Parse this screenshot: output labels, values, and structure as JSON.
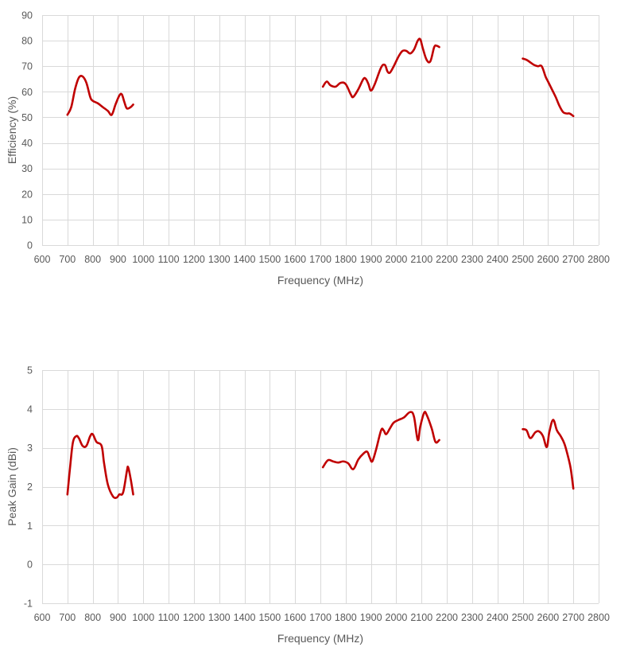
{
  "chart_data": [
    {
      "type": "line",
      "xlabel": "Frequency (MHz)",
      "ylabel": "Efficiency (%)",
      "xlim": [
        600,
        2800
      ],
      "ylim": [
        0,
        90
      ],
      "xticks": [
        600,
        700,
        800,
        900,
        1000,
        1100,
        1200,
        1300,
        1400,
        1500,
        1600,
        1700,
        1800,
        1900,
        2000,
        2100,
        2200,
        2300,
        2400,
        2500,
        2600,
        2700,
        2800
      ],
      "yticks": [
        0,
        10,
        20,
        30,
        40,
        50,
        60,
        70,
        80,
        90
      ],
      "grid": true,
      "color": "#c00000",
      "segments": [
        [
          [
            700,
            51
          ],
          [
            715,
            54
          ],
          [
            730,
            61
          ],
          [
            745,
            65.5
          ],
          [
            760,
            66
          ],
          [
            775,
            63.5
          ],
          [
            790,
            58
          ],
          [
            800,
            56.5
          ],
          [
            820,
            55.5
          ],
          [
            840,
            54
          ],
          [
            860,
            52.5
          ],
          [
            875,
            51
          ],
          [
            890,
            55
          ],
          [
            905,
            58.5
          ],
          [
            915,
            59
          ],
          [
            925,
            56
          ],
          [
            935,
            53.5
          ],
          [
            950,
            54
          ],
          [
            960,
            55
          ]
        ],
        [
          [
            1710,
            62
          ],
          [
            1725,
            64
          ],
          [
            1740,
            62.5
          ],
          [
            1760,
            62
          ],
          [
            1780,
            63.5
          ],
          [
            1800,
            63
          ],
          [
            1820,
            59
          ],
          [
            1830,
            58
          ],
          [
            1850,
            61
          ],
          [
            1870,
            65
          ],
          [
            1880,
            65
          ],
          [
            1890,
            63
          ],
          [
            1900,
            60.5
          ],
          [
            1915,
            63
          ],
          [
            1940,
            69.5
          ],
          [
            1955,
            70.5
          ],
          [
            1965,
            68
          ],
          [
            1975,
            67.5
          ],
          [
            1990,
            70
          ],
          [
            2010,
            74
          ],
          [
            2025,
            76
          ],
          [
            2040,
            76
          ],
          [
            2055,
            75
          ],
          [
            2070,
            76.5
          ],
          [
            2085,
            80
          ],
          [
            2095,
            80.5
          ],
          [
            2105,
            77
          ],
          [
            2120,
            72.5
          ],
          [
            2135,
            72
          ],
          [
            2150,
            77.5
          ],
          [
            2160,
            78
          ],
          [
            2170,
            77.5
          ]
        ],
        [
          [
            2500,
            73
          ],
          [
            2515,
            72.5
          ],
          [
            2530,
            71.5
          ],
          [
            2545,
            70.5
          ],
          [
            2560,
            70
          ],
          [
            2575,
            70
          ],
          [
            2590,
            66
          ],
          [
            2600,
            64
          ],
          [
            2615,
            61
          ],
          [
            2630,
            58
          ],
          [
            2645,
            54.5
          ],
          [
            2660,
            52
          ],
          [
            2675,
            51.5
          ],
          [
            2685,
            51.5
          ],
          [
            2700,
            50.5
          ]
        ]
      ]
    },
    {
      "type": "line",
      "xlabel": "Frequency (MHz)",
      "ylabel": "Peak Gain (dBi)",
      "xlim": [
        600,
        2800
      ],
      "ylim": [
        -1,
        5
      ],
      "xticks": [
        600,
        700,
        800,
        900,
        1000,
        1100,
        1200,
        1300,
        1400,
        1500,
        1600,
        1700,
        1800,
        1900,
        2000,
        2100,
        2200,
        2300,
        2400,
        2500,
        2600,
        2700,
        2800
      ],
      "yticks": [
        -1,
        0,
        1,
        2,
        3,
        4,
        5
      ],
      "grid": true,
      "color": "#c00000",
      "segments": [
        [
          [
            700,
            1.8
          ],
          [
            712,
            2.6
          ],
          [
            722,
            3.15
          ],
          [
            735,
            3.3
          ],
          [
            745,
            3.25
          ],
          [
            760,
            3.05
          ],
          [
            775,
            3.05
          ],
          [
            790,
            3.3
          ],
          [
            800,
            3.35
          ],
          [
            815,
            3.15
          ],
          [
            835,
            3.05
          ],
          [
            845,
            2.6
          ],
          [
            860,
            2.05
          ],
          [
            880,
            1.75
          ],
          [
            895,
            1.72
          ],
          [
            905,
            1.8
          ],
          [
            920,
            1.85
          ],
          [
            935,
            2.4
          ],
          [
            940,
            2.5
          ],
          [
            950,
            2.2
          ],
          [
            960,
            1.8
          ]
        ],
        [
          [
            1710,
            2.5
          ],
          [
            1730,
            2.68
          ],
          [
            1750,
            2.65
          ],
          [
            1770,
            2.62
          ],
          [
            1790,
            2.65
          ],
          [
            1810,
            2.6
          ],
          [
            1830,
            2.45
          ],
          [
            1850,
            2.7
          ],
          [
            1870,
            2.85
          ],
          [
            1885,
            2.9
          ],
          [
            1895,
            2.75
          ],
          [
            1905,
            2.65
          ],
          [
            1920,
            2.95
          ],
          [
            1940,
            3.45
          ],
          [
            1950,
            3.45
          ],
          [
            1960,
            3.35
          ],
          [
            1975,
            3.5
          ],
          [
            1990,
            3.65
          ],
          [
            2010,
            3.72
          ],
          [
            2030,
            3.78
          ],
          [
            2055,
            3.92
          ],
          [
            2070,
            3.8
          ],
          [
            2085,
            3.2
          ],
          [
            2095,
            3.55
          ],
          [
            2110,
            3.9
          ],
          [
            2120,
            3.85
          ],
          [
            2140,
            3.5
          ],
          [
            2155,
            3.15
          ],
          [
            2170,
            3.2
          ]
        ],
        [
          [
            2500,
            3.48
          ],
          [
            2515,
            3.45
          ],
          [
            2530,
            3.25
          ],
          [
            2550,
            3.4
          ],
          [
            2565,
            3.42
          ],
          [
            2580,
            3.3
          ],
          [
            2595,
            3.02
          ],
          [
            2605,
            3.4
          ],
          [
            2620,
            3.72
          ],
          [
            2635,
            3.45
          ],
          [
            2650,
            3.3
          ],
          [
            2665,
            3.1
          ],
          [
            2680,
            2.75
          ],
          [
            2690,
            2.45
          ],
          [
            2700,
            1.95
          ]
        ]
      ]
    }
  ]
}
